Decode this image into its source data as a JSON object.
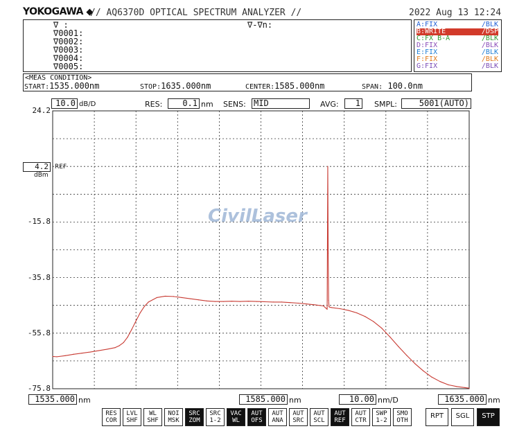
{
  "header": {
    "brand": "YOKOGAWA",
    "model": "// AQ6370D OPTICAL SPECTRUM ANALYZER //",
    "datetime": "2022 Aug 13 12:24"
  },
  "markers": {
    "top_left": "∇   :",
    "top_right": "∇-∇n:",
    "rows": [
      "∇0001:",
      "∇0002:",
      "∇0003:",
      "∇0004:",
      "∇0005:"
    ]
  },
  "traces": [
    {
      "left": "A:FIX",
      "right": "/BLK",
      "color": "#1f5fd6",
      "selected": false
    },
    {
      "left": "B:WRITE",
      "right": "/DSP",
      "color": "#d23a2a",
      "selected": true
    },
    {
      "left": "C:FX B-A",
      "right": "/BLK",
      "color": "#2f9a2f",
      "selected": false
    },
    {
      "left": "D:FIX",
      "right": "/BLK",
      "color": "#8a4db8",
      "selected": false
    },
    {
      "left": "E:FIX",
      "right": "/BLK",
      "color": "#1f7fd6",
      "selected": false
    },
    {
      "left": "F:FIX",
      "right": "/BLK",
      "color": "#e07a1a",
      "selected": false
    },
    {
      "left": "G:FIX",
      "right": "/BLK",
      "color": "#7a4db8",
      "selected": false
    }
  ],
  "meas": {
    "title": "<MEAS CONDITION>",
    "start_label": "START:",
    "start_value": "1535.000nm",
    "stop_label": "STOP:",
    "stop_value": "1635.000nm",
    "center_label": "CENTER:",
    "center_value": "1585.000nm",
    "span_label": "SPAN:",
    "span_value": "100.0nm"
  },
  "settings": {
    "scale_value": "10.0",
    "scale_unit": "dB/D",
    "res_label": "RES:",
    "res_value": "0.1",
    "res_unit": "nm",
    "sens_label": "SENS:",
    "sens_value": "MID",
    "avg_label": "AVG:",
    "avg_value": "1",
    "smpl_label": "SMPL:",
    "smpl_value": "5001(AUTO)"
  },
  "ref": {
    "value": "4.2",
    "unit": "dBm",
    "label": "REF"
  },
  "watermark": "CivilLaser",
  "chart_data": {
    "type": "line",
    "xlim": [
      1535,
      1635
    ],
    "ylim": [
      -75.8,
      24.2
    ],
    "y_ticks": [
      "24.2",
      "4.2",
      "-15.8",
      "-35.8",
      "-55.8",
      "-75.8"
    ],
    "grid": true,
    "series": [
      {
        "color": "#c83a32",
        "x": [
          1535,
          1536,
          1538,
          1540,
          1542,
          1544,
          1546,
          1548,
          1550,
          1551,
          1552,
          1553,
          1554,
          1555,
          1556,
          1557,
          1558,
          1560,
          1562,
          1564,
          1566,
          1568,
          1570,
          1572,
          1574,
          1576,
          1578,
          1580,
          1582,
          1584,
          1586,
          1588,
          1590,
          1592,
          1594,
          1596,
          1598,
          1600,
          1600.9,
          1601.05,
          1601.15,
          1601.25,
          1601.35,
          1601.6,
          1602,
          1604,
          1606,
          1608,
          1610,
          1612,
          1614,
          1616,
          1618,
          1620,
          1622,
          1624,
          1626,
          1628,
          1630,
          1632,
          1634,
          1635
        ],
        "y": [
          -64.2,
          -64.3,
          -63.9,
          -63.4,
          -63.0,
          -62.6,
          -62.1,
          -61.6,
          -61.0,
          -60.3,
          -59.2,
          -57.2,
          -54.4,
          -51.4,
          -48.5,
          -46.2,
          -44.6,
          -43.0,
          -42.5,
          -42.6,
          -43.0,
          -43.4,
          -43.8,
          -44.2,
          -44.4,
          -44.4,
          -44.3,
          -44.4,
          -44.3,
          -44.4,
          -44.5,
          -44.6,
          -44.6,
          -44.8,
          -45.0,
          -45.3,
          -45.6,
          -46.0,
          -47.2,
          4.2,
          -27.0,
          -44.0,
          -46.3,
          -46.5,
          -46.6,
          -47.0,
          -47.6,
          -48.5,
          -49.8,
          -51.6,
          -54.0,
          -57.2,
          -60.6,
          -63.8,
          -66.8,
          -69.4,
          -71.6,
          -73.2,
          -74.4,
          -75.0,
          -75.4,
          -75.6
        ]
      }
    ]
  },
  "xaxis": {
    "left": "1535.000",
    "left_unit": "nm",
    "center": "1585.000",
    "center_unit": "nm",
    "div": "10.00",
    "div_unit": "nm/D",
    "right": "1635.000",
    "right_unit": "nm"
  },
  "softkeys": [
    {
      "l1": "RES",
      "l2": "COR",
      "inv": false
    },
    {
      "l1": "LVL",
      "l2": "SHF",
      "inv": false
    },
    {
      "l1": "WL",
      "l2": "SHF",
      "inv": false
    },
    {
      "l1": "NOI",
      "l2": "MSK",
      "inv": false
    },
    {
      "l1": "SRC",
      "l2": "ZOM",
      "inv": true
    },
    {
      "l1": "SRC",
      "l2": "1-2",
      "inv": false
    },
    {
      "l1": "VAC",
      "l2": "WL",
      "inv": true
    },
    {
      "l1": "AUT",
      "l2": "OFS",
      "inv": true
    },
    {
      "l1": "AUT",
      "l2": "ANA",
      "inv": false
    },
    {
      "l1": "AUT",
      "l2": "SRC",
      "inv": false
    },
    {
      "l1": "AUT",
      "l2": "SCL",
      "inv": false
    },
    {
      "l1": "AUT",
      "l2": "REF",
      "inv": true
    },
    {
      "l1": "AUT",
      "l2": "CTR",
      "inv": false
    },
    {
      "l1": "SWP",
      "l2": "1-2",
      "inv": false
    },
    {
      "l1": "SMO",
      "l2": "OTH",
      "inv": false
    }
  ],
  "buttons": [
    {
      "label": "RPT",
      "inv": false
    },
    {
      "label": "SGL",
      "inv": false
    },
    {
      "label": "STP",
      "inv": true
    }
  ]
}
